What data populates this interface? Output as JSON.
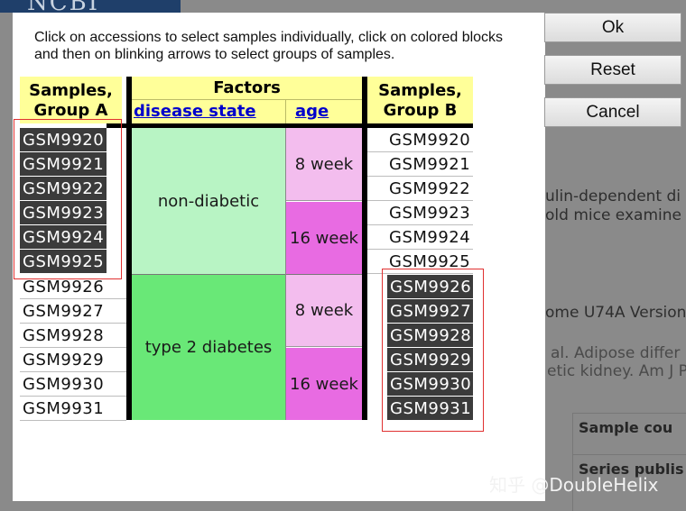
{
  "background": {
    "banner_text": "NCBI",
    "snippets": [
      "ulin-dependent di",
      "old mice examine",
      "ome U74A Version",
      "al. Adipose differ",
      "etic kidney. Am J P"
    ],
    "table_cells": [
      "Sample cou",
      "Series publis"
    ]
  },
  "dialog": {
    "instructions": "Click on accessions to select samples individually, click on colored blocks and then on blinking arrows to select groups of samples."
  },
  "buttons": {
    "ok": "Ok",
    "reset": "Reset",
    "cancel": "Cancel"
  },
  "table": {
    "group_a_header_line1": "Samples,",
    "group_a_header_line2": "Group A",
    "factors_header": "Factors",
    "factor_col1": "disease state",
    "factor_col2": "age",
    "group_b_header_line1": "Samples,",
    "group_b_header_line2": "Group B",
    "group_a": [
      "GSM9920",
      "GSM9921",
      "GSM9922",
      "GSM9923",
      "GSM9924",
      "GSM9925",
      "GSM9926",
      "GSM9927",
      "GSM9928",
      "GSM9929",
      "GSM9930",
      "GSM9931"
    ],
    "group_b": [
      "GSM9920",
      "GSM9921",
      "GSM9922",
      "GSM9923",
      "GSM9924",
      "GSM9925",
      "GSM9926",
      "GSM9927",
      "GSM9928",
      "GSM9929",
      "GSM9930",
      "GSM9931"
    ],
    "disease_blocks": [
      "non-diabetic",
      "type 2 diabetes"
    ],
    "age_blocks": [
      "8 week",
      "16 week",
      "8 week",
      "16 week"
    ]
  },
  "colors": {
    "non_diabetic": "#b8f4c4",
    "type2": "#69e877",
    "week8": "#f3bdee",
    "week16": "#e86be2",
    "header_yellow": "#ffff99"
  },
  "watermark": "知乎 @DoubleHelix"
}
